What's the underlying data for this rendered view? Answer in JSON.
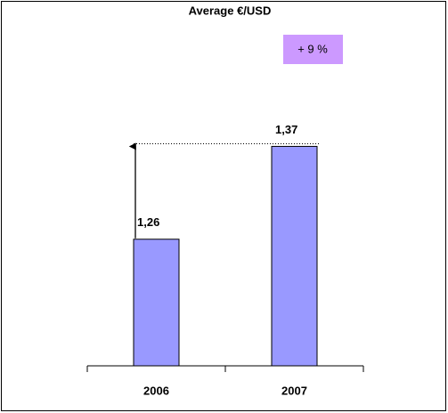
{
  "chart_data": {
    "type": "bar",
    "title": "Average €/USD",
    "categories": [
      "2006",
      "2007"
    ],
    "values": [
      1.26,
      1.37
    ],
    "value_labels": [
      "1,26",
      "1,37"
    ],
    "color": "#9999ff",
    "ylim": [
      1.11,
      1.4
    ],
    "annotations": [
      "+ 9 %"
    ]
  }
}
